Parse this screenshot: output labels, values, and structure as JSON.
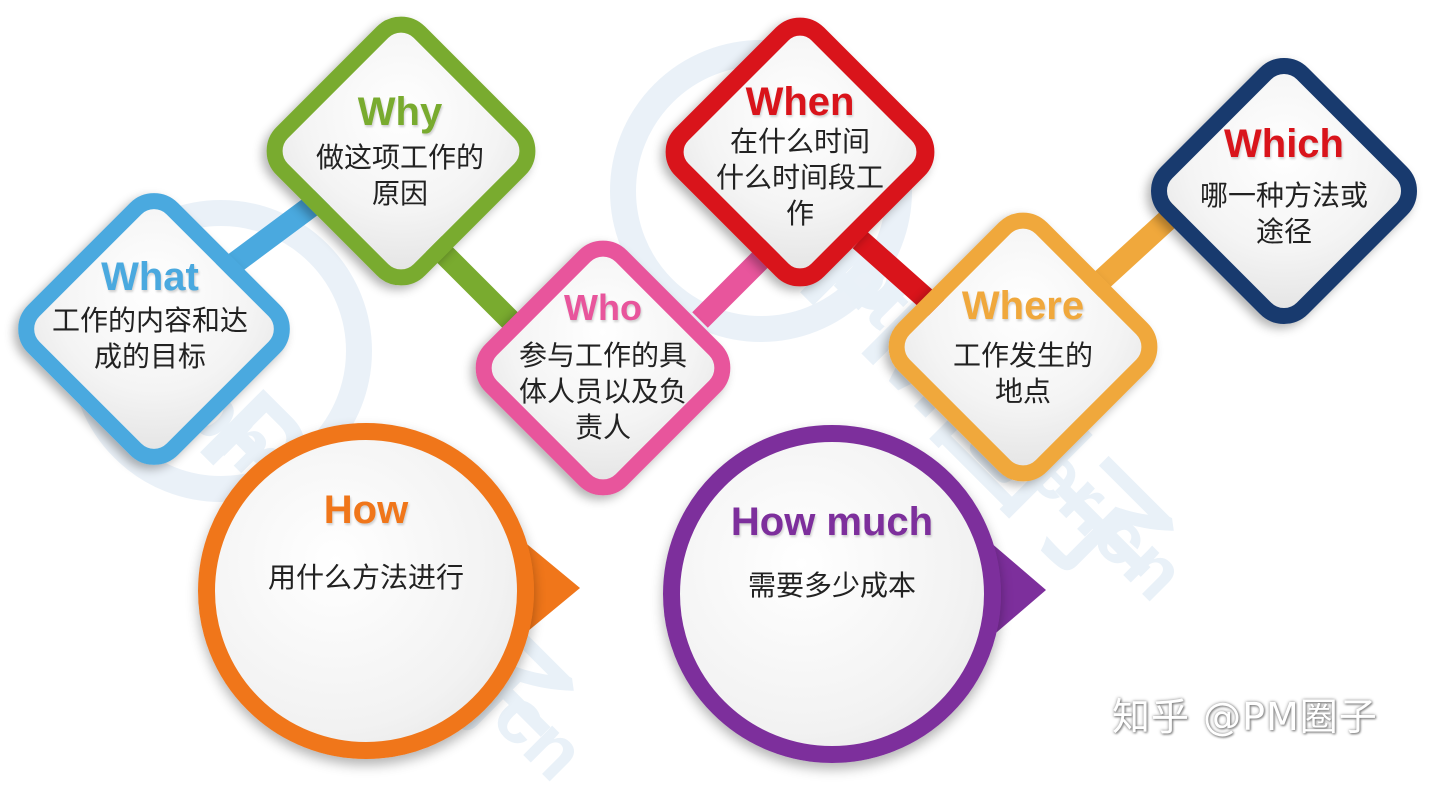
{
  "colors": {
    "what": "#4aa9df",
    "why": "#79ab2f",
    "who": "#e8559c",
    "when": "#d9141b",
    "where": "#f0a83c",
    "which": "#183a6e",
    "how": "#f0761a",
    "how_much": "#7d2f9c"
  },
  "nodes": {
    "what": {
      "title": "What",
      "lines": [
        "工作的内容和达",
        "成的目标"
      ]
    },
    "why": {
      "title": "Why",
      "lines": [
        "做这项工作的",
        "原因"
      ]
    },
    "who": {
      "title": "Who",
      "lines": [
        "参与工作的具",
        "体人员以及负",
        "责人"
      ]
    },
    "when": {
      "title": "When",
      "lines": [
        "在什么时间",
        "什么时间段工",
        "作"
      ]
    },
    "where": {
      "title": "Where",
      "lines": [
        "工作发生的",
        "地点"
      ]
    },
    "which": {
      "title": "Which",
      "lines": [
        "哪一种方法或",
        "途径"
      ]
    }
  },
  "bubbles": {
    "how": {
      "title": "How",
      "text": "用什么方法进行"
    },
    "how_much": {
      "title": "How much",
      "text": "需要多少成本"
    }
  },
  "watermark": {
    "text": "pmtoleader.cn",
    "mark": "PM圈子"
  },
  "footer": {
    "text": "知乎 @PM圈子"
  }
}
